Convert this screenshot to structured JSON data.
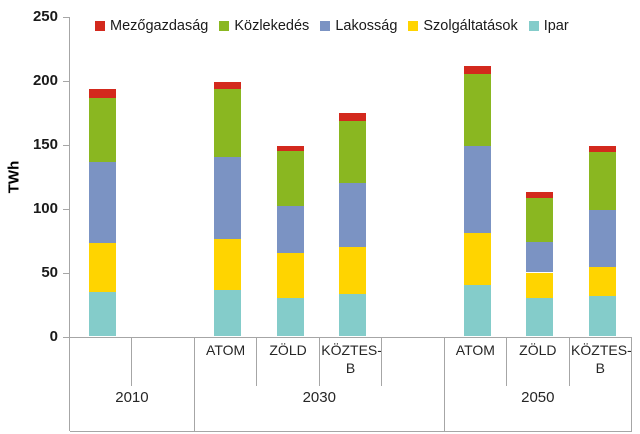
{
  "y_axis_title": "TWh",
  "chart_data": {
    "type": "bar",
    "stacked": true,
    "title": "",
    "xlabel": "",
    "ylabel": "TWh",
    "ylim": [
      0,
      250
    ],
    "yticks": [
      0,
      50,
      100,
      150,
      200,
      250
    ],
    "grid": false,
    "legend_position": "top",
    "legend_order": [
      "Mezőgazdaság",
      "Közlekedés",
      "Lakosság",
      "Szolgáltatások",
      "Ipar"
    ],
    "stack_order_bottom_to_top": [
      "Ipar",
      "Szolgáltatások",
      "Lakosság",
      "Közlekedés",
      "Mezőgazdaság"
    ],
    "series_colors": {
      "Mezőgazdaság": "#D3291D",
      "Közlekedés": "#8AB721",
      "Lakosság": "#7B93C3",
      "Szolgáltatások": "#FFD400",
      "Ipar": "#84CCCA"
    },
    "axis_color": "#A6A6A6",
    "unit": "TWh",
    "groups": [
      {
        "year": "2010",
        "empty_slots_after": 1,
        "bars": [
          {
            "scenario": "",
            "values": {
              "Ipar": 35,
              "Szolgáltatások": 38,
              "Lakosság": 63,
              "Közlekedés": 50,
              "Mezőgazdaság": 7
            }
          }
        ]
      },
      {
        "year": "2030",
        "empty_slots_after": 1,
        "bars": [
          {
            "scenario": "ATOM",
            "values": {
              "Ipar": 36,
              "Szolgáltatások": 40,
              "Lakosság": 64,
              "Közlekedés": 53,
              "Mezőgazdaság": 6
            }
          },
          {
            "scenario": "ZÖLD",
            "values": {
              "Ipar": 30,
              "Szolgáltatások": 35,
              "Lakosság": 37,
              "Közlekedés": 43,
              "Mezőgazdaság": 4
            }
          },
          {
            "scenario": "KÖZTES-B",
            "values": {
              "Ipar": 33,
              "Szolgáltatások": 37,
              "Lakosság": 50,
              "Közlekedés": 48,
              "Mezőgazdaság": 7
            }
          }
        ]
      },
      {
        "year": "2050",
        "empty_slots_after": 0,
        "bars": [
          {
            "scenario": "ATOM",
            "values": {
              "Ipar": 40,
              "Szolgáltatások": 41,
              "Lakosság": 68,
              "Közlekedés": 56,
              "Mezőgazdaság": 6
            }
          },
          {
            "scenario": "ZÖLD",
            "values": {
              "Ipar": 30,
              "Szolgáltatások": 20,
              "Lakosság": 24,
              "Közlekedés": 34,
              "Mezőgazdaság": 5
            }
          },
          {
            "scenario": "KÖZTES-B",
            "values": {
              "Ipar": 32,
              "Szolgáltatások": 22,
              "Lakosság": 45,
              "Közlekedés": 45,
              "Mezőgazdaság": 5
            }
          }
        ]
      }
    ]
  }
}
